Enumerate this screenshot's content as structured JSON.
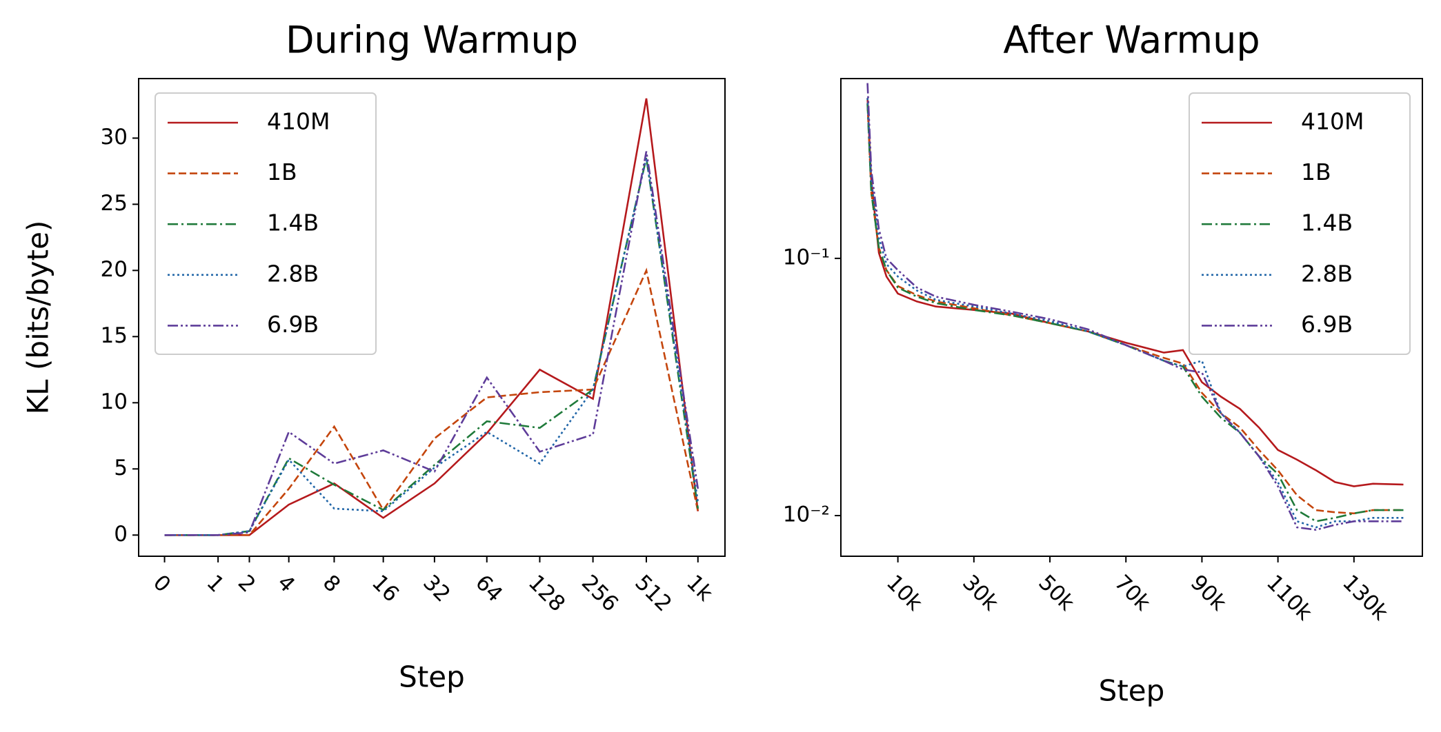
{
  "chart_data": [
    {
      "type": "line",
      "title": "During Warmup",
      "xlabel": "Step",
      "ylabel": "KL (bits/byte)",
      "xscale": "log1p",
      "yscale": "linear",
      "legend": "upper left",
      "x": [
        0,
        1,
        2,
        4,
        8,
        16,
        32,
        64,
        128,
        256,
        512,
        1000
      ],
      "xlim": [
        -0.285,
        1420
      ],
      "ylim": [
        -1.6,
        34.5
      ],
      "xticks": [
        0,
        1,
        2,
        4,
        8,
        16,
        32,
        64,
        128,
        256,
        512,
        {
          "value": 1000,
          "label": "1k"
        }
      ],
      "yticks": [
        0,
        5,
        10,
        15,
        20,
        25,
        30
      ],
      "series": [
        {
          "name": "410M",
          "color": "#b5191c",
          "dash": "solid",
          "values": [
            0,
            0,
            0,
            2.3,
            3.9,
            1.3,
            3.9,
            7.7,
            12.5,
            10.3,
            33,
            1.8
          ]
        },
        {
          "name": "1B",
          "color": "#c4450c",
          "dash": "dashed",
          "values": [
            0,
            0,
            0,
            3.5,
            8.2,
            1.9,
            7.3,
            10.4,
            10.8,
            11,
            20,
            1.8
          ]
        },
        {
          "name": "1.4B",
          "color": "#1f7a3a",
          "dash": "dashdot",
          "values": [
            0,
            0,
            0.3,
            5.8,
            3.8,
            1.9,
            5.3,
            8.6,
            8.1,
            11,
            28.5,
            2
          ]
        },
        {
          "name": "2.8B",
          "color": "#2166a8",
          "dash": "dotted",
          "values": [
            0,
            0,
            0.3,
            5.7,
            2,
            1.8,
            5.1,
            7.8,
            5.4,
            11,
            28.5,
            2.5
          ]
        },
        {
          "name": "6.9B",
          "color": "#5e3c99",
          "dash": "dashdotdot",
          "values": [
            0,
            0,
            0.2,
            7.8,
            5.4,
            6.4,
            4.8,
            11.9,
            6.3,
            7.6,
            29,
            3.5
          ]
        }
      ]
    },
    {
      "type": "line",
      "title": "After Warmup",
      "xlabel": "Step",
      "xscale": "linear",
      "yscale": "log",
      "legend": "upper right",
      "x": [
        2000,
        3000,
        5000,
        7000,
        10000,
        15000,
        20000,
        30000,
        40000,
        50000,
        60000,
        70000,
        80000,
        85000,
        90000,
        95000,
        100000,
        105000,
        110000,
        115000,
        120000,
        125000,
        130000,
        135000,
        143000
      ],
      "xlim": [
        -5000,
        148000
      ],
      "ylim": [
        0.00695,
        0.5
      ],
      "xticks": [
        {
          "value": 10000,
          "label": "10k"
        },
        {
          "value": 30000,
          "label": "30k"
        },
        {
          "value": 50000,
          "label": "50k"
        },
        {
          "value": 70000,
          "label": "70k"
        },
        {
          "value": 90000,
          "label": "90k"
        },
        {
          "value": 110000,
          "label": "110k"
        },
        {
          "value": 130000,
          "label": "130k"
        }
      ],
      "yticks": [
        {
          "value": 0.1,
          "label": "10⁻¹"
        },
        {
          "value": 0.01,
          "label": "10⁻²"
        }
      ],
      "series": [
        {
          "name": "410M",
          "color": "#b5191c",
          "dash": "solid",
          "values": [
            0.42,
            0.2,
            0.105,
            0.085,
            0.073,
            0.068,
            0.065,
            0.063,
            0.061,
            0.056,
            0.052,
            0.047,
            0.043,
            0.044,
            0.033,
            0.029,
            0.026,
            0.022,
            0.018,
            0.0165,
            0.015,
            0.0135,
            0.013,
            0.0133,
            0.0132
          ]
        },
        {
          "name": "1B",
          "color": "#c4450c",
          "dash": "dashed",
          "values": [
            0.4,
            0.18,
            0.11,
            0.09,
            0.078,
            0.072,
            0.068,
            0.064,
            0.06,
            0.056,
            0.052,
            0.046,
            0.041,
            0.039,
            0.03,
            0.025,
            0.022,
            0.018,
            0.015,
            0.012,
            0.0105,
            0.0103,
            0.0102,
            0.0105,
            0.0105
          ]
        },
        {
          "name": "1.4B",
          "color": "#1f7a3a",
          "dash": "dashdot",
          "values": [
            0.4,
            0.18,
            0.11,
            0.09,
            0.077,
            0.071,
            0.067,
            0.063,
            0.06,
            0.056,
            0.052,
            0.046,
            0.04,
            0.038,
            0.029,
            0.024,
            0.021,
            0.017,
            0.0145,
            0.0105,
            0.0095,
            0.0098,
            0.0102,
            0.0105,
            0.0105
          ]
        },
        {
          "name": "2.8B",
          "color": "#2166a8",
          "dash": "dotted",
          "values": [
            0.42,
            0.2,
            0.12,
            0.095,
            0.085,
            0.075,
            0.069,
            0.065,
            0.061,
            0.057,
            0.052,
            0.046,
            0.04,
            0.038,
            0.04,
            0.025,
            0.021,
            0.017,
            0.0135,
            0.0095,
            0.009,
            0.0095,
            0.0095,
            0.0098,
            0.0098
          ]
        },
        {
          "name": "6.9B",
          "color": "#5e3c99",
          "dash": "dashdotdot",
          "values": [
            0.48,
            0.22,
            0.13,
            0.1,
            0.09,
            0.077,
            0.071,
            0.066,
            0.062,
            0.058,
            0.053,
            0.046,
            0.04,
            0.037,
            0.036,
            0.025,
            0.021,
            0.017,
            0.013,
            0.009,
            0.0088,
            0.0092,
            0.0095,
            0.0095,
            0.0095
          ]
        }
      ]
    }
  ]
}
